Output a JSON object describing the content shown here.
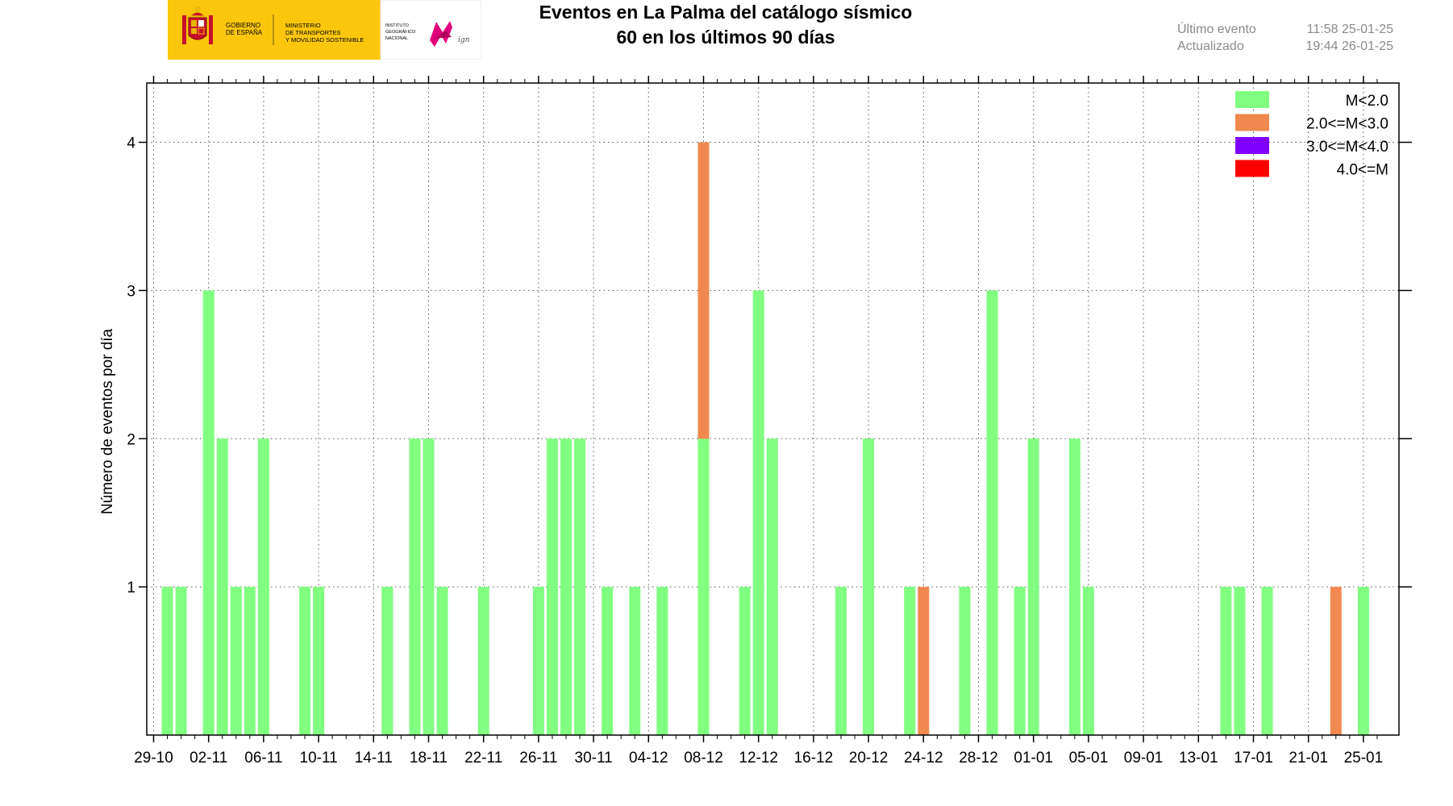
{
  "header": {
    "logo": {
      "line1": "GOBIERNO",
      "line2": "DE ESPAÑA",
      "min1": "MINISTERIO",
      "min2": "DE TRANSPORTES",
      "min3": "Y MOVILIDAD SOSTENIBLE",
      "ign1": "INSTITUTO",
      "ign2": "GEOGRÁFICO",
      "ign3": "NACIONAL",
      "ign_sig": "ign"
    },
    "title_line1": "Eventos en La Palma del catálogo sísmico",
    "title_line2": "60 en los últimos 90 días",
    "last_event_label": "Último evento",
    "last_event_value": "11:58 25-01-25",
    "updated_label": "Actualizado",
    "updated_value": "19:44  26-01-25"
  },
  "chart_data": {
    "type": "bar",
    "stacked": true,
    "title": "Eventos en La Palma del catálogo sísmico",
    "subtitle": "60 en los últimos 90 días",
    "xlabel": "",
    "ylabel": "Número de eventos por día",
    "x_start_date": "2024-10-29",
    "x_ticks": [
      "29-10",
      "02-11",
      "06-11",
      "10-11",
      "14-11",
      "18-11",
      "22-11",
      "26-11",
      "30-11",
      "04-12",
      "08-12",
      "12-12",
      "16-12",
      "20-12",
      "24-12",
      "28-12",
      "01-01",
      "05-01",
      "09-01",
      "13-01",
      "17-01",
      "21-01",
      "25-01"
    ],
    "y_ticks": [
      1,
      2,
      3,
      4
    ],
    "ylim": [
      0,
      4.4
    ],
    "grid": true,
    "legend_position": "top-right",
    "series": [
      {
        "name": "M<2.0",
        "color": "#80ff80",
        "points": [
          [
            "2024-10-30",
            1
          ],
          [
            "2024-10-31",
            1
          ],
          [
            "2024-11-02",
            3
          ],
          [
            "2024-11-03",
            2
          ],
          [
            "2024-11-04",
            1
          ],
          [
            "2024-11-05",
            1
          ],
          [
            "2024-11-06",
            2
          ],
          [
            "2024-11-09",
            1
          ],
          [
            "2024-11-10",
            1
          ],
          [
            "2024-11-15",
            1
          ],
          [
            "2024-11-17",
            2
          ],
          [
            "2024-11-18",
            2
          ],
          [
            "2024-11-19",
            1
          ],
          [
            "2024-11-22",
            1
          ],
          [
            "2024-11-26",
            1
          ],
          [
            "2024-11-27",
            2
          ],
          [
            "2024-11-28",
            2
          ],
          [
            "2024-11-29",
            2
          ],
          [
            "2024-12-01",
            1
          ],
          [
            "2024-12-03",
            1
          ],
          [
            "2024-12-05",
            1
          ],
          [
            "2024-12-08",
            2
          ],
          [
            "2024-12-11",
            1
          ],
          [
            "2024-12-12",
            3
          ],
          [
            "2024-12-13",
            2
          ],
          [
            "2024-12-18",
            1
          ],
          [
            "2024-12-20",
            2
          ],
          [
            "2024-12-23",
            1
          ],
          [
            "2024-12-27",
            1
          ],
          [
            "2024-12-29",
            3
          ],
          [
            "2024-12-31",
            1
          ],
          [
            "2025-01-01",
            2
          ],
          [
            "2025-01-04",
            2
          ],
          [
            "2025-01-05",
            1
          ],
          [
            "2025-01-15",
            1
          ],
          [
            "2025-01-16",
            1
          ],
          [
            "2025-01-18",
            1
          ],
          [
            "2025-01-25",
            1
          ]
        ]
      },
      {
        "name": "2.0<=M<3.0",
        "color": "#f08850",
        "points": [
          [
            "2024-12-08",
            2
          ],
          [
            "2024-12-24",
            1
          ],
          [
            "2025-01-23",
            1
          ]
        ]
      },
      {
        "name": "3.0<=M<4.0",
        "color": "#8000ff",
        "points": []
      },
      {
        "name": "4.0<=M",
        "color": "#ff0000",
        "points": []
      }
    ]
  }
}
